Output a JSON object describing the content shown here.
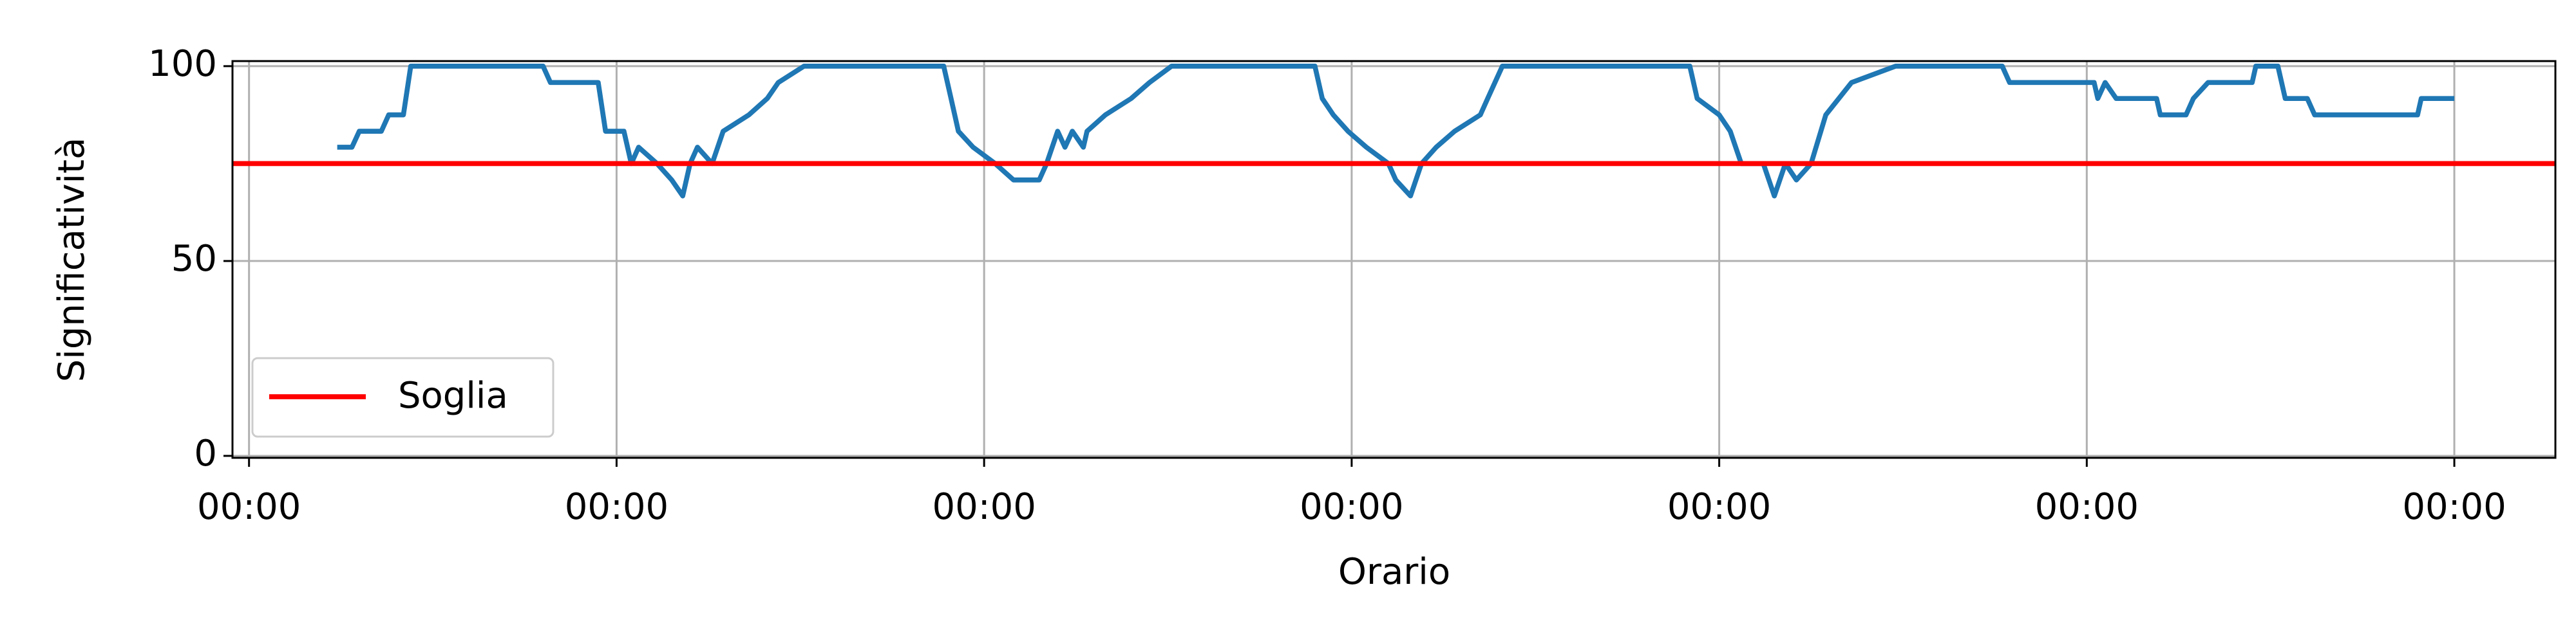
{
  "chart_data": {
    "type": "line",
    "xlabel": "Orario",
    "ylabel": "Significatività",
    "x": [
      0.24,
      0.28,
      0.3,
      0.36,
      0.38,
      0.42,
      0.44,
      0.8,
      0.82,
      0.95,
      0.97,
      1.02,
      1.04,
      1.06,
      1.11,
      1.15,
      1.18,
      1.2,
      1.22,
      1.26,
      1.29,
      1.36,
      1.41,
      1.44,
      1.51,
      1.89,
      1.91,
      1.93,
      1.97,
      2.03,
      2.08,
      2.15,
      2.17,
      2.2,
      2.22,
      2.24,
      2.27,
      2.28,
      2.33,
      2.4,
      2.45,
      2.51,
      2.9,
      2.92,
      2.95,
      2.99,
      3.04,
      3.1,
      3.12,
      3.16,
      3.19,
      3.23,
      3.28,
      3.35,
      3.37,
      3.41,
      3.92,
      3.94,
      4.0,
      4.03,
      4.06,
      4.12,
      4.15,
      4.18,
      4.21,
      4.25,
      4.29,
      4.36,
      4.48,
      4.77,
      4.79,
      5.02,
      5.03,
      5.05,
      5.08,
      5.19,
      5.2,
      5.27,
      5.29,
      5.33,
      5.45,
      5.46,
      5.52,
      5.54,
      5.6,
      5.62,
      5.9,
      5.91,
      6.0
    ],
    "series": [
      {
        "color": "#1f77b4",
        "values": [
          79.2,
          79.2,
          83.3,
          83.3,
          87.5,
          87.5,
          100,
          100,
          95.8,
          95.8,
          83.3,
          83.3,
          75,
          79.2,
          75,
          70.8,
          66.7,
          75,
          79.2,
          75,
          83.3,
          87.5,
          91.7,
          95.8,
          100,
          100,
          91.7,
          83.3,
          79.2,
          75,
          70.8,
          70.8,
          75,
          83.3,
          79.2,
          83.3,
          79.2,
          83.3,
          87.5,
          91.7,
          95.8,
          100,
          100,
          91.7,
          87.5,
          83.3,
          79.2,
          75,
          70.8,
          66.7,
          75,
          79.2,
          83.3,
          87.5,
          91.7,
          100,
          100,
          91.7,
          87.5,
          83.3,
          75,
          75,
          66.7,
          75,
          70.8,
          75,
          87.5,
          95.8,
          100,
          100,
          95.8,
          95.8,
          91.7,
          95.8,
          91.7,
          91.7,
          87.5,
          87.5,
          91.7,
          95.8,
          95.8,
          100,
          100,
          91.7,
          91.7,
          87.5,
          87.5,
          91.7,
          91.7
        ]
      }
    ],
    "threshold": {
      "name": "Soglia",
      "value": 75,
      "color": "#ff0000"
    },
    "xlim": [
      -0.045,
      6.275
    ],
    "xticks": [
      {
        "value": 0,
        "label": "00:00"
      },
      {
        "value": 1,
        "label": "00:00"
      },
      {
        "value": 2,
        "label": "00:00"
      },
      {
        "value": 3,
        "label": "00:00"
      },
      {
        "value": 4,
        "label": "00:00"
      },
      {
        "value": 5,
        "label": "00:00"
      },
      {
        "value": 6,
        "label": "00:00"
      }
    ],
    "ylim": [
      -0.5,
      101.3
    ],
    "yticks": [
      0,
      50,
      100
    ],
    "grid": true,
    "legend": "lower left"
  }
}
